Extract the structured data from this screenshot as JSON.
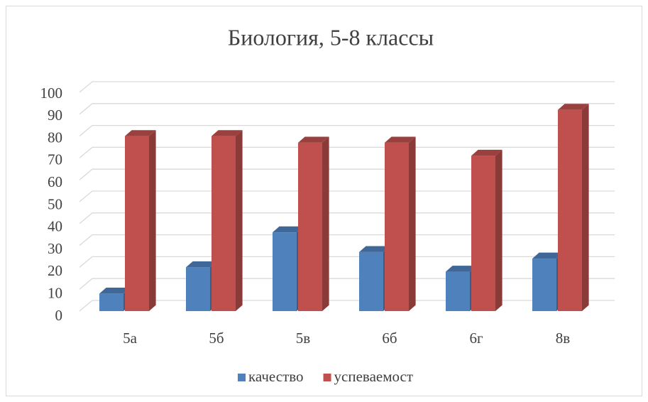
{
  "chart_data": {
    "type": "bar3d",
    "title": "Биология, 5-8 классы",
    "categories": [
      "5а",
      "5б",
      "5в",
      "6б",
      "6г",
      "8в"
    ],
    "series": [
      {
        "name": "качество",
        "color": "#4f81bd",
        "values": [
          8,
          20,
          36,
          27,
          18,
          24
        ]
      },
      {
        "name": "успеваемост",
        "color": "#c0504d",
        "values": [
          80,
          80,
          77,
          77,
          71,
          92
        ]
      }
    ],
    "ylim": [
      0,
      100
    ],
    "yticks": [
      0,
      10,
      20,
      30,
      40,
      50,
      60,
      70,
      80,
      90,
      100
    ],
    "grid": true,
    "legend": "bottom"
  }
}
